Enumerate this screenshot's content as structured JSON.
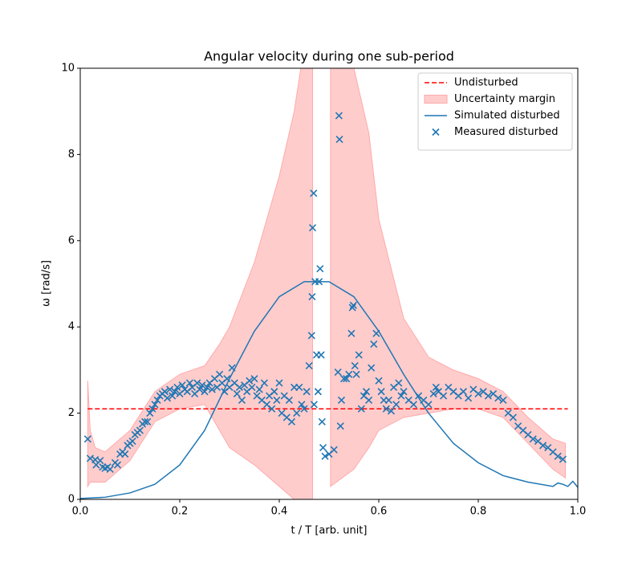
{
  "chart_data": {
    "type": "line",
    "title": "Angular velocity during one sub-period",
    "xlabel": "t / T [arb. unit]",
    "ylabel": "ω [rad/s]",
    "xlim": [
      0,
      1
    ],
    "ylim": [
      0,
      10
    ],
    "xticks": [
      {
        "value": 0,
        "label": "0.0"
      },
      0.2,
      0.4,
      0.6,
      0.8,
      {
        "value": 1,
        "label": "1.0"
      }
    ],
    "yticks": [
      0,
      2,
      4,
      6,
      8,
      10
    ],
    "legend": "upper right",
    "series": [
      {
        "name": "Undisturbed",
        "type": "line",
        "color": "#ff0000",
        "dashed": true,
        "x": [
          0.015,
          0.98
        ],
        "values": [
          2.1,
          2.1
        ]
      },
      {
        "name": "Uncertainty margin",
        "type": "band",
        "color": "#ffcccc",
        "x": [
          0.015,
          0.02,
          0.03,
          0.05,
          0.1,
          0.15,
          0.2,
          0.25,
          0.28,
          0.3,
          0.35,
          0.4,
          0.43,
          0.45,
          0.467,
          0.485,
          0.503,
          0.55,
          0.58,
          0.6,
          0.65,
          0.7,
          0.75,
          0.8,
          0.85,
          0.9,
          0.95,
          0.975
        ],
        "lower": [
          0.3,
          0.4,
          0.4,
          0.4,
          0.9,
          1.8,
          2.1,
          2.2,
          1.6,
          1.2,
          0.8,
          0.3,
          0,
          0,
          0,
          null,
          0.3,
          0.7,
          1.2,
          1.6,
          1.9,
          2.0,
          2.1,
          2.1,
          1.9,
          1.3,
          0.7,
          0.5
        ],
        "upper": [
          2.75,
          1.6,
          1.2,
          1.1,
          1.6,
          2.5,
          2.9,
          3.1,
          3.6,
          4.0,
          5.5,
          7.5,
          9,
          10.5,
          10.5,
          null,
          10.5,
          10,
          8.5,
          6.5,
          4.2,
          3.3,
          3.0,
          2.8,
          2.5,
          1.9,
          1.4,
          1.3
        ]
      },
      {
        "name": "Simulated disturbed",
        "type": "line",
        "color": "#1f77b4",
        "x": [
          0,
          0.05,
          0.1,
          0.15,
          0.2,
          0.25,
          0.3,
          0.35,
          0.4,
          0.45,
          0.5,
          0.55,
          0.6,
          0.65,
          0.7,
          0.75,
          0.8,
          0.85,
          0.9,
          0.95,
          0.96,
          0.97,
          0.98,
          0.99,
          1.0
        ],
        "values": [
          0.02,
          0.05,
          0.15,
          0.35,
          0.8,
          1.6,
          2.8,
          3.9,
          4.7,
          5.05,
          5.05,
          4.7,
          3.9,
          2.9,
          2.0,
          1.3,
          0.85,
          0.55,
          0.4,
          0.3,
          0.38,
          0.35,
          0.3,
          0.42,
          0.28
        ]
      },
      {
        "name": "Measured disturbed",
        "type": "scatter",
        "color": "#1f77b4",
        "marker": "x",
        "x": [
          0.015,
          0.02,
          0.03,
          0.032,
          0.04,
          0.045,
          0.05,
          0.055,
          0.06,
          0.07,
          0.075,
          0.08,
          0.085,
          0.09,
          0.095,
          0.1,
          0.105,
          0.11,
          0.115,
          0.12,
          0.125,
          0.13,
          0.135,
          0.14,
          0.145,
          0.15,
          0.155,
          0.16,
          0.165,
          0.17,
          0.175,
          0.18,
          0.185,
          0.19,
          0.195,
          0.2,
          0.205,
          0.21,
          0.215,
          0.22,
          0.225,
          0.23,
          0.235,
          0.24,
          0.245,
          0.25,
          0.255,
          0.26,
          0.265,
          0.27,
          0.275,
          0.28,
          0.285,
          0.29,
          0.295,
          0.3,
          0.305,
          0.31,
          0.315,
          0.32,
          0.325,
          0.33,
          0.335,
          0.34,
          0.345,
          0.35,
          0.355,
          0.36,
          0.365,
          0.37,
          0.375,
          0.38,
          0.385,
          0.39,
          0.395,
          0.4,
          0.405,
          0.41,
          0.415,
          0.42,
          0.425,
          0.43,
          0.435,
          0.44,
          0.445,
          0.45,
          0.455,
          0.46,
          0.465,
          0.466,
          0.467,
          0.469,
          0.47,
          0.472,
          0.475,
          0.478,
          0.48,
          0.482,
          0.484,
          0.486,
          0.488,
          0.492,
          0.5,
          0.51,
          0.518,
          0.52,
          0.521,
          0.523,
          0.525,
          0.53,
          0.535,
          0.54,
          0.545,
          0.547,
          0.549,
          0.552,
          0.555,
          0.56,
          0.565,
          0.57,
          0.575,
          0.58,
          0.585,
          0.59,
          0.595,
          0.6,
          0.605,
          0.61,
          0.615,
          0.62,
          0.625,
          0.63,
          0.635,
          0.64,
          0.645,
          0.65,
          0.66,
          0.67,
          0.68,
          0.69,
          0.7,
          0.71,
          0.715,
          0.72,
          0.73,
          0.74,
          0.75,
          0.76,
          0.77,
          0.78,
          0.79,
          0.8,
          0.81,
          0.82,
          0.83,
          0.84,
          0.85,
          0.86,
          0.87,
          0.88,
          0.89,
          0.9,
          0.91,
          0.92,
          0.93,
          0.94,
          0.95,
          0.96,
          0.97
        ],
        "values": [
          1.4,
          0.95,
          0.92,
          0.8,
          0.9,
          0.75,
          0.72,
          0.75,
          0.7,
          0.85,
          0.8,
          1.05,
          1.1,
          1.05,
          1.25,
          1.3,
          1.35,
          1.5,
          1.55,
          1.6,
          1.75,
          1.8,
          1.8,
          2.0,
          2.1,
          2.2,
          2.3,
          2.4,
          2.45,
          2.5,
          2.35,
          2.55,
          2.4,
          2.5,
          2.6,
          2.45,
          2.65,
          2.55,
          2.5,
          2.7,
          2.6,
          2.45,
          2.7,
          2.55,
          2.65,
          2.5,
          2.6,
          2.7,
          2.55,
          2.8,
          2.6,
          2.9,
          2.7,
          2.5,
          2.8,
          2.6,
          3.05,
          2.7,
          2.45,
          2.6,
          2.3,
          2.65,
          2.5,
          2.75,
          2.6,
          2.8,
          2.4,
          2.55,
          2.3,
          2.7,
          2.2,
          2.4,
          2.1,
          2.5,
          2.3,
          2.7,
          2.0,
          2.4,
          1.9,
          2.3,
          1.8,
          2.6,
          2.0,
          2.6,
          2.2,
          2.1,
          2.5,
          3.1,
          3.8,
          4.7,
          6.3,
          7.1,
          2.2,
          5.05,
          3.35,
          2.5,
          5.05,
          5.35,
          3.35,
          1.8,
          1.2,
          1.0,
          1.05,
          1.15,
          2.95,
          8.9,
          8.35,
          1.7,
          2.3,
          2.8,
          2.8,
          2.9,
          3.85,
          4.45,
          4.5,
          3.1,
          2.9,
          3.35,
          2.1,
          2.4,
          2.5,
          2.3,
          3.05,
          3.6,
          3.85,
          2.75,
          2.5,
          2.3,
          2.1,
          2.3,
          2.05,
          2.6,
          2.2,
          2.7,
          2.4,
          2.5,
          2.3,
          2.2,
          2.4,
          2.3,
          2.2,
          2.45,
          2.6,
          2.5,
          2.4,
          2.6,
          2.5,
          2.4,
          2.5,
          2.35,
          2.55,
          2.45,
          2.5,
          2.4,
          2.45,
          2.35,
          2.3,
          2.0,
          1.9,
          1.7,
          1.6,
          1.5,
          1.4,
          1.35,
          1.25,
          1.2,
          1.1,
          1.0,
          0.93
        ]
      }
    ]
  }
}
